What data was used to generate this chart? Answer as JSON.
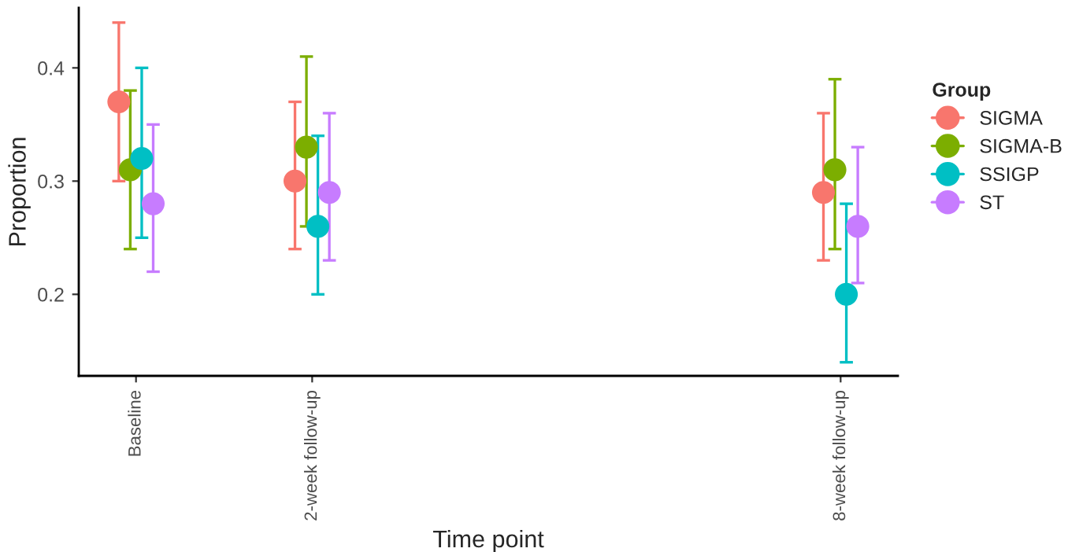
{
  "chart_data": {
    "type": "scatter",
    "xlabel": "Time point",
    "ylabel": "Proportion",
    "legend_title": "Group",
    "xlim": [
      -0.65,
      8.65
    ],
    "xticks": [
      {
        "value": 0,
        "label": "Baseline"
      },
      {
        "value": 2,
        "label": "2-week follow-up"
      },
      {
        "value": 8,
        "label": "8-week follow-up"
      }
    ],
    "ylim": [
      0.128,
      0.453
    ],
    "yticks": [
      0.2,
      0.3,
      0.4
    ],
    "grid": false,
    "legend": "right",
    "marker": "circle",
    "series": [
      {
        "name": "SIGMA",
        "color": "#f8766d",
        "x": [
          -0.195,
          1.805,
          7.805
        ],
        "values": [
          0.37,
          0.3,
          0.29
        ],
        "errors": [
          [
            0.3,
            0.44
          ],
          [
            0.24,
            0.37
          ],
          [
            0.23,
            0.36
          ]
        ]
      },
      {
        "name": "SIGMA-B",
        "color": "#7cae00",
        "x": [
          -0.065,
          1.935,
          7.935
        ],
        "values": [
          0.31,
          0.33,
          0.31
        ],
        "errors": [
          [
            0.24,
            0.38
          ],
          [
            0.26,
            0.41
          ],
          [
            0.24,
            0.39
          ]
        ]
      },
      {
        "name": "SSIGP",
        "color": "#00bfc4",
        "x": [
          0.065,
          2.065,
          8.065
        ],
        "values": [
          0.32,
          0.26,
          0.2
        ],
        "errors": [
          [
            0.25,
            0.4
          ],
          [
            0.2,
            0.34
          ],
          [
            0.14,
            0.28
          ]
        ]
      },
      {
        "name": "ST",
        "color": "#c77cff",
        "x": [
          0.195,
          2.195,
          8.195
        ],
        "values": [
          0.28,
          0.29,
          0.26
        ],
        "errors": [
          [
            0.22,
            0.35
          ],
          [
            0.23,
            0.36
          ],
          [
            0.21,
            0.33
          ]
        ]
      }
    ]
  }
}
